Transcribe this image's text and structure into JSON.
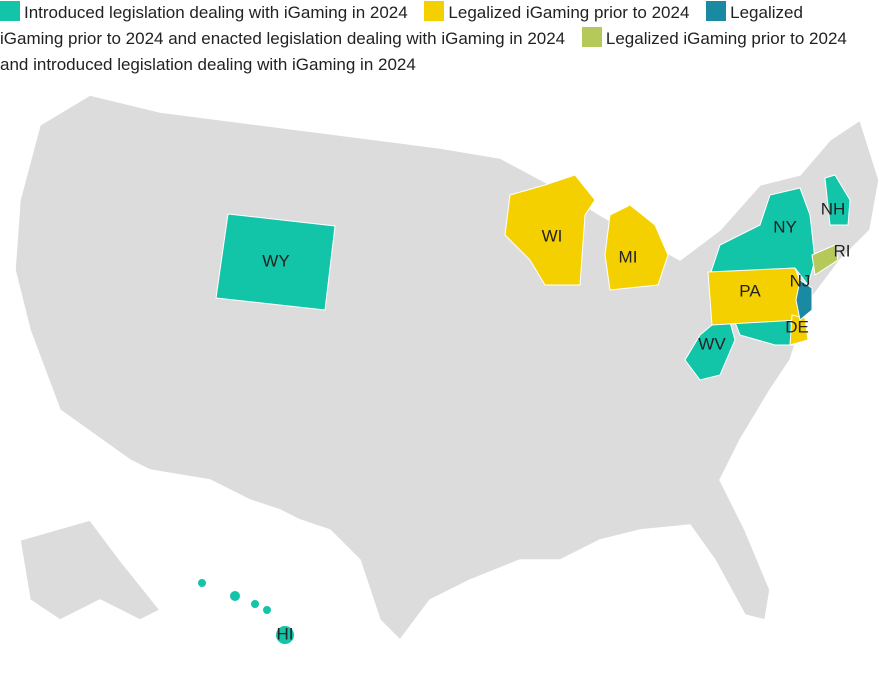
{
  "legend": [
    {
      "label": "Introduced legislation dealing with iGaming in 2024",
      "color": "#12c4a8",
      "states": [
        "WY",
        "NY",
        "NH",
        "WV",
        "HI"
      ]
    },
    {
      "label": "Legalized iGaming prior to 2024",
      "color": "#f5d000",
      "states": [
        "WI",
        "MI",
        "PA",
        "DE"
      ]
    },
    {
      "label": "Legalized iGaming prior to 2024 and enacted legislation dealing with iGaming in 2024",
      "color": "#1a8aa2",
      "states": [
        "NJ"
      ]
    },
    {
      "label": "Legalized iGaming prior to 2024 and introduced legislation dealing with iGaming in 2024",
      "color": "#b5c95a",
      "states": [
        "RI"
      ]
    }
  ]
}
